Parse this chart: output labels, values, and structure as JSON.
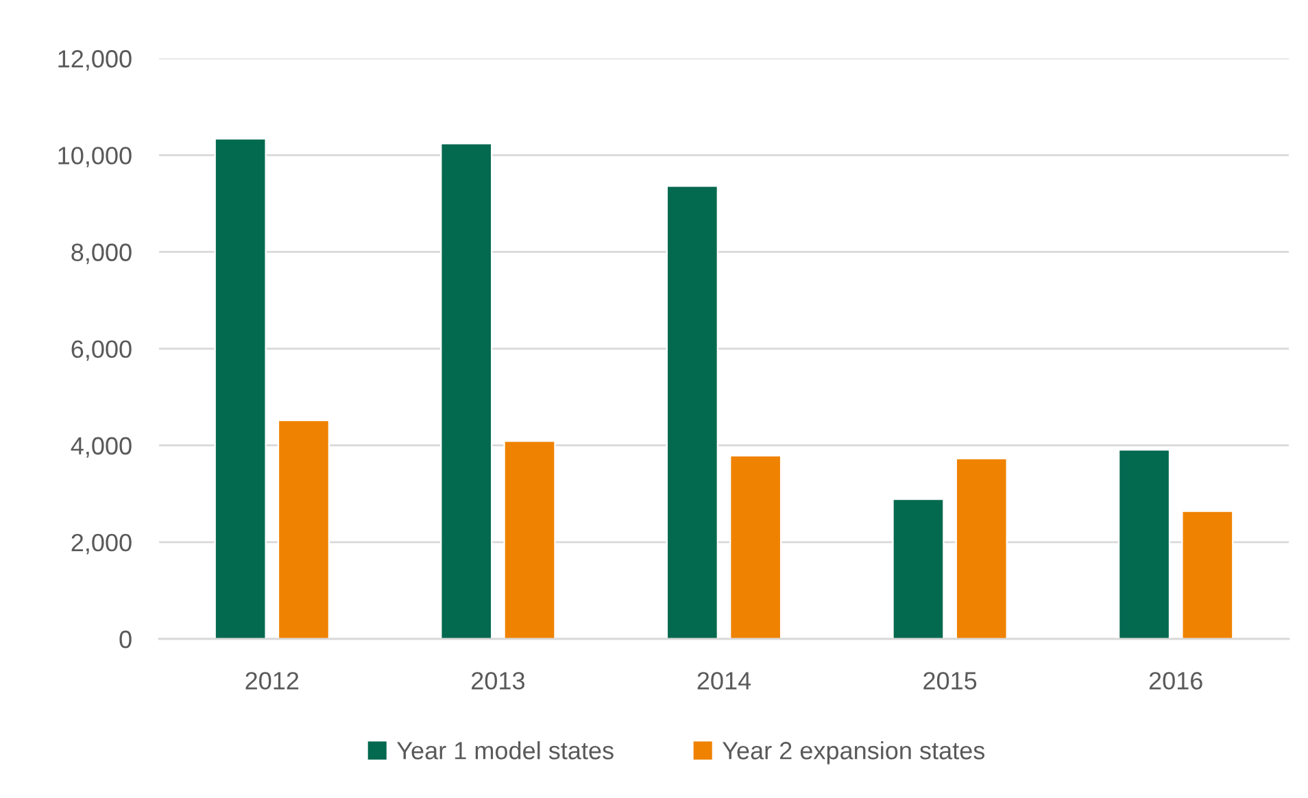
{
  "chart_data": {
    "type": "bar",
    "categories": [
      "2012",
      "2013",
      "2014",
      "2015",
      "2016"
    ],
    "series": [
      {
        "name": "Year 1 model states",
        "color": "#03694f",
        "values": [
          10340,
          10240,
          9360,
          2890,
          3910
        ]
      },
      {
        "name": "Year 2 expansion states",
        "color": "#ef8200",
        "values": [
          4520,
          4090,
          3790,
          3730,
          2640
        ]
      }
    ],
    "ylim": [
      0,
      12000
    ],
    "yticks": [
      0,
      {
        "value": 2000,
        "label": "2,000"
      },
      {
        "value": 4000,
        "label": "4,000"
      },
      {
        "value": 6000,
        "label": "6,000"
      },
      {
        "value": 8000,
        "label": "8,000"
      },
      {
        "value": 10000,
        "label": "10,000"
      },
      {
        "value": 12000,
        "label": "12,000"
      }
    ],
    "grid": "y",
    "legend": "bottom"
  }
}
